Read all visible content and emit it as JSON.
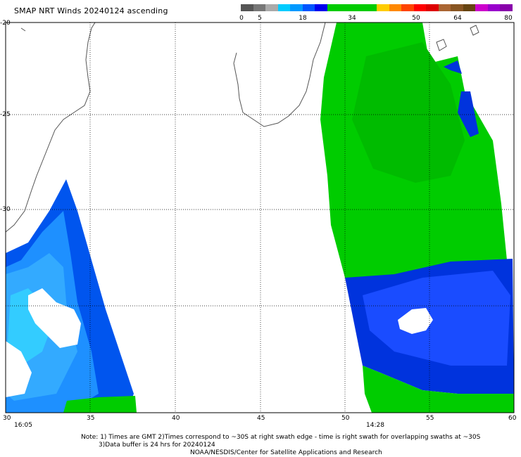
{
  "header": {
    "title": "SMAP NRT Winds 20240124 ascending"
  },
  "colorbar": {
    "labels": [
      "0",
      "5",
      "18",
      "34",
      "50",
      "64",
      "80"
    ],
    "colors": [
      "#555555",
      "#777777",
      "#aaaaaa",
      "#00ccff",
      "#0099ff",
      "#0055ff",
      "#0000ee",
      "#00cc00",
      "#00cc00",
      "#00cc00",
      "#00cc00",
      "#ffcc00",
      "#ff8800",
      "#ff4400",
      "#ff0000",
      "#dd0000",
      "#aa6633",
      "#885522",
      "#664411",
      "#cc00cc",
      "#9900cc",
      "#8800aa"
    ]
  },
  "map": {
    "lat_labels": [
      "-20",
      "-25",
      "-30"
    ],
    "lon_labels": [
      "30",
      "35",
      "40",
      "45",
      "50",
      "55",
      "60"
    ],
    "swath_times": [
      "16:05",
      "14:28"
    ]
  },
  "footer": {
    "note_line1": "Note: 1) Times are GMT 2)Times correspond to ~30S at right swath edge - time is right swath for overlapping swaths at ~30S",
    "note_line2": "3)Data buffer is 24 hrs for 20240124",
    "credit": "NOAA/NESDIS/Center for Satellite Applications and Research"
  }
}
